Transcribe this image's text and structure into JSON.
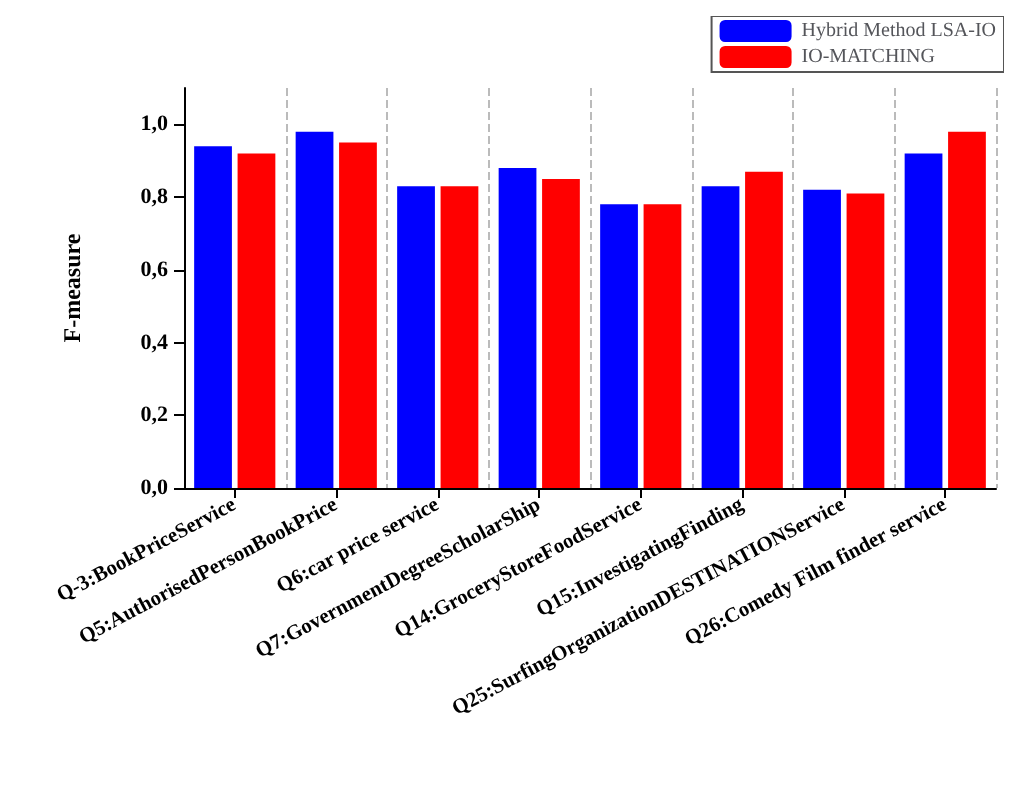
{
  "chart_data": {
    "type": "bar",
    "ylabel": "F-measure",
    "categories": [
      "Q-3:BookPriceService",
      "Q5:AuthorisedPersonBookPrice",
      "Q6:car price service",
      "Q7:GovernmentDegreeScholarShip",
      "Q14:GroceryStoreFoodService",
      "Q15:InvestigatingFinding",
      "Q25:SurfingOrganizationDESTINATIONService",
      "Q26:Comedy Film finder service"
    ],
    "series": [
      {
        "name": "Hybrid Method LSA-IO",
        "color": "#0000ff",
        "values": [
          0.94,
          0.98,
          0.83,
          0.88,
          0.78,
          0.83,
          0.82,
          0.92
        ]
      },
      {
        "name": "IO-MATCHING",
        "color": "#ff0000",
        "values": [
          0.92,
          0.95,
          0.83,
          0.85,
          0.78,
          0.87,
          0.81,
          0.98
        ]
      }
    ],
    "ylim": [
      0,
      1.1
    ],
    "yticks": [
      {
        "value": 0,
        "label": "0,0"
      },
      {
        "value": 0.2,
        "label": "0,2"
      },
      {
        "value": 0.4,
        "label": "0,4"
      },
      {
        "value": 0.6,
        "label": "0,6"
      },
      {
        "value": 0.8,
        "label": "0,8"
      },
      {
        "value": 1,
        "label": "1,0"
      }
    ],
    "grid": "x",
    "legend": "top right"
  }
}
